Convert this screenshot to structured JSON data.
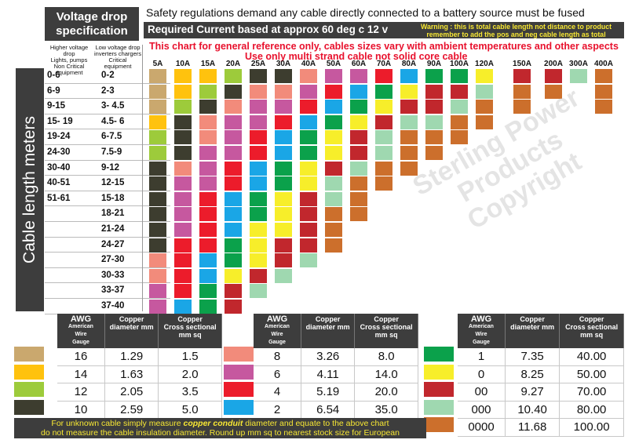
{
  "header": {
    "title_line1": "Voltage drop",
    "title_line2": "specification",
    "safety": "Safety regulations demand any cable directly connected to a battery source must be fused",
    "required": "Required Current  based at approx 60 deg c 12 v",
    "warning_line1": "Warning : this is total cable length not distance to product",
    "warning_line2": "remember to add the pos and neg cable length as total",
    "note1": "This chart for general reference only, cables sizes vary with ambient temperatures and other aspects",
    "note2": "Use only multi strand cable not solid core cable"
  },
  "columns": {
    "high_line1": "Higher voltage drop",
    "high_line2": "Lights, pumps",
    "high_line3": "Non Critical",
    "high_line4": "equipment",
    "low_line1": "Low voltage drop",
    "low_line2": "inverters  chargers",
    "low_line3": "Critical",
    "low_line4": "equipment"
  },
  "colors": {
    "16": "#caa86e",
    "14": "#ffc20e",
    "12": "#9dcb3b",
    "10": "#3d3d2f",
    "8": "#f28b7b",
    "6": "#c6589f",
    "4": "#ec1c2b",
    "2": "#1aa6e6",
    "1": "#0ba14b",
    "0": "#f7ee2a",
    "00": "#c1272d",
    "000": "#9fd8b0",
    "0000": "#cc6f2c"
  },
  "chart_data": {
    "type": "heatmap",
    "title": "Voltage drop specification",
    "xlabel": "Required Current  based at approx 60 deg c 12 v",
    "ylabel": "Cable length meters",
    "currents": [
      "5A",
      "10A",
      "15A",
      "20A",
      "25A",
      "30A",
      "40A",
      "50A",
      "60A",
      "70A",
      "80A",
      "90A",
      "100A",
      "120A",
      "150A",
      "200A",
      "300A",
      "400A"
    ],
    "rows": [
      {
        "high": "0-6",
        "low": "0-2",
        "gauges": [
          "16",
          "14",
          "14",
          "12",
          "10",
          "10",
          "8",
          "6",
          "6",
          "4",
          "2",
          "1",
          "1",
          "0",
          "00",
          "00",
          "000",
          "0000"
        ]
      },
      {
        "high": "6-9",
        "low": "2-3",
        "gauges": [
          "16",
          "14",
          "12",
          "10",
          "8",
          "8",
          "6",
          "4",
          "2",
          "1",
          "0",
          "00",
          "00",
          "000",
          "0000",
          "0000",
          "",
          "0000"
        ]
      },
      {
        "high": "9-15",
        "low": "3- 4.5",
        "gauges": [
          "16",
          "12",
          "10",
          "8",
          "6",
          "6",
          "4",
          "2",
          "1",
          "0",
          "00",
          "00",
          "000",
          "0000",
          "0000",
          "",
          "",
          "0000"
        ]
      },
      {
        "high": "15- 19",
        "low": "4.5- 6",
        "gauges": [
          "14",
          "10",
          "8",
          "6",
          "6",
          "4",
          "2",
          "1",
          "0",
          "00",
          "000",
          "000",
          "0000",
          "0000",
          "",
          "",
          "",
          ""
        ]
      },
      {
        "high": "19-24",
        "low": "6-7.5",
        "gauges": [
          "12",
          "10",
          "8",
          "6",
          "4",
          "2",
          "1",
          "0",
          "00",
          "000",
          "0000",
          "0000",
          "0000",
          "",
          "",
          "",
          "",
          ""
        ]
      },
      {
        "high": "24-30",
        "low": "7.5-9",
        "gauges": [
          "12",
          "10",
          "6",
          "6",
          "4",
          "2",
          "1",
          "0",
          "00",
          "000",
          "0000",
          "0000",
          "",
          "",
          "",
          "",
          "",
          ""
        ]
      },
      {
        "high": "30-40",
        "low": "9-12",
        "gauges": [
          "10",
          "8",
          "6",
          "4",
          "2",
          "1",
          "0",
          "00",
          "000",
          "0000",
          "0000",
          "",
          "",
          "",
          "",
          "",
          "",
          ""
        ]
      },
      {
        "high": "40-51",
        "low": "12-15",
        "gauges": [
          "10",
          "6",
          "6",
          "4",
          "2",
          "1",
          "0",
          "000",
          "0000",
          "0000",
          "",
          "",
          "",
          "",
          "",
          "",
          "",
          ""
        ]
      },
      {
        "high": "51-61",
        "low": "15-18",
        "gauges": [
          "10",
          "6",
          "4",
          "2",
          "1",
          "0",
          "00",
          "000",
          "0000",
          "",
          "",
          "",
          "",
          "",
          "",
          "",
          "",
          ""
        ]
      },
      {
        "high": "",
        "low": "18-21",
        "gauges": [
          "10",
          "6",
          "4",
          "2",
          "1",
          "0",
          "00",
          "0000",
          "0000",
          "",
          "",
          "",
          "",
          "",
          "",
          "",
          "",
          ""
        ]
      },
      {
        "high": "",
        "low": "21-24",
        "gauges": [
          "10",
          "6",
          "4",
          "2",
          "0",
          "0",
          "00",
          "0000",
          "",
          "",
          "",
          "",
          "",
          "",
          "",
          "",
          "",
          ""
        ]
      },
      {
        "high": "",
        "low": "24-27",
        "gauges": [
          "10",
          "4",
          "4",
          "1",
          "0",
          "00",
          "00",
          "0000",
          "",
          "",
          "",
          "",
          "",
          "",
          "",
          "",
          "",
          ""
        ]
      },
      {
        "high": "",
        "low": "27-30",
        "gauges": [
          "8",
          "4",
          "2",
          "1",
          "0",
          "00",
          "000",
          "",
          "",
          "",
          "",
          "",
          "",
          "",
          "",
          "",
          "",
          ""
        ]
      },
      {
        "high": "",
        "low": "30-33",
        "gauges": [
          "8",
          "4",
          "2",
          "0",
          "00",
          "000",
          "",
          "",
          "",
          "",
          "",
          "",
          "",
          "",
          "",
          "",
          "",
          ""
        ]
      },
      {
        "high": "",
        "low": "33-37",
        "gauges": [
          "6",
          "4",
          "1",
          "00",
          "000",
          "",
          "",
          "",
          "",
          "",
          "",
          "",
          "",
          "",
          "",
          "",
          "",
          ""
        ]
      },
      {
        "high": "",
        "low": "37-40",
        "gauges": [
          "6",
          "2",
          "1",
          "00",
          "",
          "",
          "",
          "",
          "",
          "",
          "",
          "",
          "",
          "",
          "",
          "",
          "",
          ""
        ]
      }
    ]
  },
  "legend": {
    "header_awg": "AWG",
    "header_awg_sub1": "American",
    "header_awg_sub2": "Wire",
    "header_awg_sub3": "Gauge",
    "header_dia1": "Copper",
    "header_dia2": "diameter mm",
    "header_cs1": "Copper",
    "header_cs2": "Cross sectional",
    "header_cs3": "mm sq",
    "groups": [
      [
        {
          "awg": "16",
          "diameter": "1.29",
          "cross": "1.5"
        },
        {
          "awg": "14",
          "diameter": "1.63",
          "cross": "2.0"
        },
        {
          "awg": "12",
          "diameter": "2.05",
          "cross": "3.5"
        },
        {
          "awg": "10",
          "diameter": "2.59",
          "cross": "5.0"
        }
      ],
      [
        {
          "awg": "8",
          "diameter": "3.26",
          "cross": "8.0"
        },
        {
          "awg": "6",
          "diameter": "4.11",
          "cross": "14.0"
        },
        {
          "awg": "4",
          "diameter": "5.19",
          "cross": "20.0"
        },
        {
          "awg": "2",
          "diameter": "6.54",
          "cross": "35.0"
        }
      ],
      [
        {
          "awg": "1",
          "diameter": "7.35",
          "cross": "40.00"
        },
        {
          "awg": "0",
          "diameter": "8.25",
          "cross": "50.00"
        },
        {
          "awg": "00",
          "diameter": "9.27",
          "cross": "70.00"
        },
        {
          "awg": "000",
          "diameter": "10.40",
          "cross": "80.00"
        },
        {
          "awg": "0000",
          "diameter": "11.68",
          "cross": "100.00"
        }
      ]
    ]
  },
  "footer": {
    "line1_a": "For unknown cable simply measure ",
    "line1_em": "copper conduit",
    "line1_b": " diameter and equate to the above chart",
    "line2": "do not measure the cable insulation diameter.  Round up mm sq to nearest stock size for European"
  },
  "watermark": {
    "line1": "Sterling  Power",
    "line2": "Products",
    "line3": "Copyright"
  }
}
